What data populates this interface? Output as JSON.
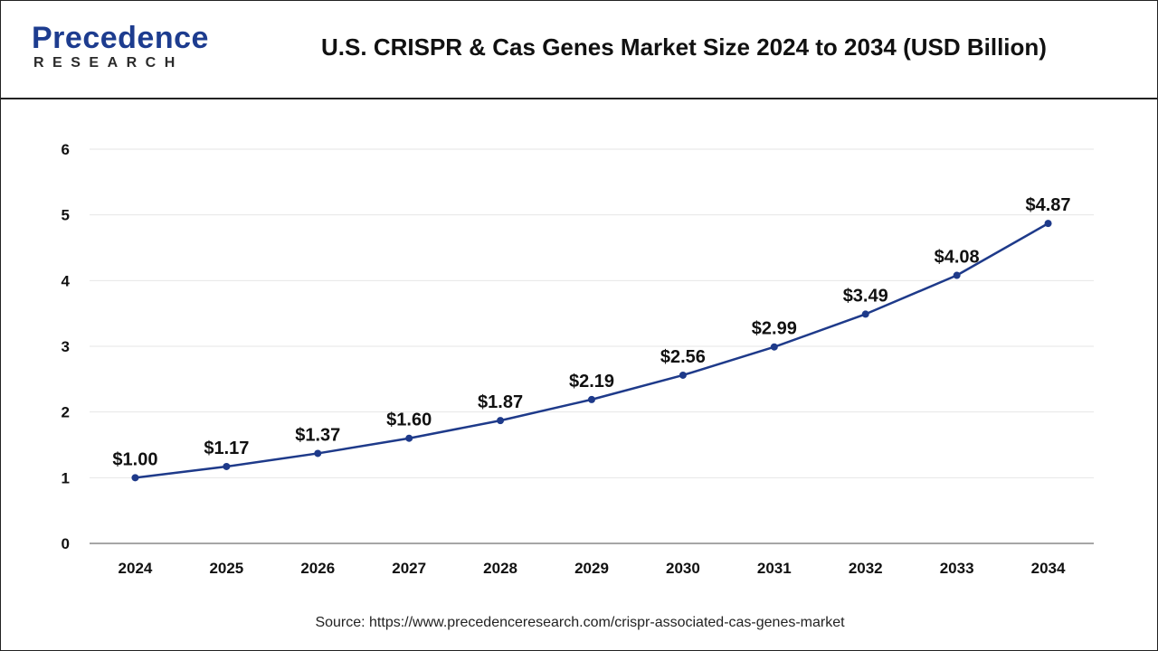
{
  "header": {
    "logo_word": "Precedence",
    "logo_sub": "RESEARCH",
    "title": "U.S. CRISPR & Cas Genes Market Size 2024 to 2034 (USD Billion)"
  },
  "source": "Source: https://www.precedenceresearch.com/crispr-associated-cas-genes-market",
  "colors": {
    "line": "#1e3a8a",
    "grid": "#e6e6e6",
    "axis": "#888888",
    "brand": "#1d3c8f"
  },
  "chart_data": {
    "type": "line",
    "title": "U.S. CRISPR & Cas Genes Market Size 2024 to 2034 (USD Billion)",
    "xlabel": "",
    "ylabel": "",
    "categories": [
      "2024",
      "2025",
      "2026",
      "2027",
      "2028",
      "2029",
      "2030",
      "2031",
      "2032",
      "2033",
      "2034"
    ],
    "values": [
      1.0,
      1.17,
      1.37,
      1.6,
      1.87,
      2.19,
      2.56,
      2.99,
      3.49,
      4.08,
      4.87
    ],
    "data_labels": [
      "$1.00",
      "$1.17",
      "$1.37",
      "$1.60",
      "$1.87",
      "$2.19",
      "$2.56",
      "$2.99",
      "$3.49",
      "$4.08",
      "$4.87"
    ],
    "yticks": [
      "0",
      "1",
      "2",
      "3",
      "4",
      "5",
      "6"
    ],
    "ylim": [
      0,
      6
    ],
    "grid": true,
    "legend": "none"
  }
}
